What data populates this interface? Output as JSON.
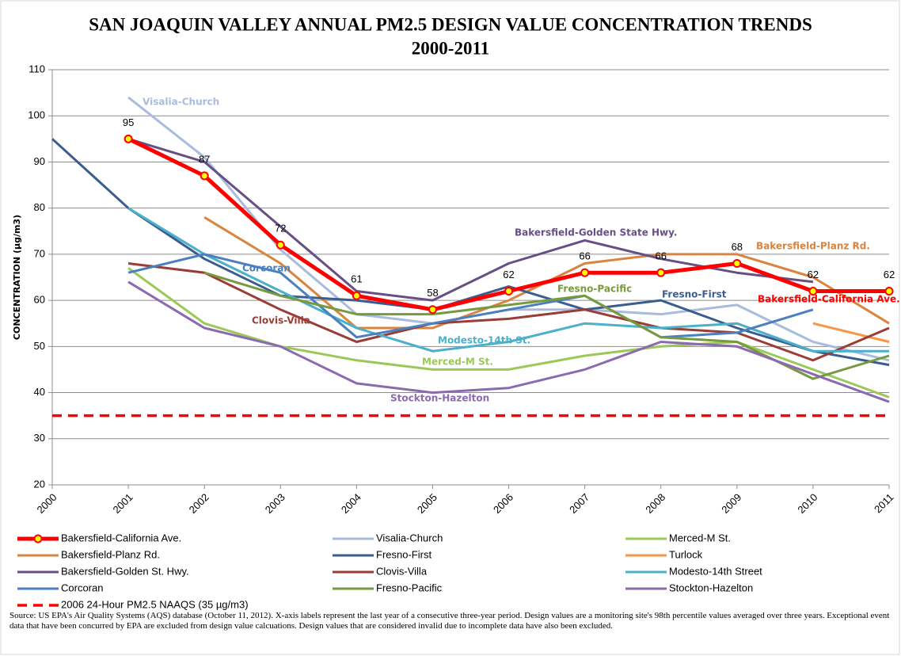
{
  "chart_data": {
    "type": "line",
    "title": "SAN JOAQUIN VALLEY ANNUAL PM2.5 DESIGN VALUE CONCENTRATION TRENDS",
    "subtitle": "2000-2011",
    "y_label": "CONCENTRATION (µg/m3)",
    "x": [
      2000,
      2001,
      2002,
      2003,
      2004,
      2005,
      2006,
      2007,
      2008,
      2009,
      2010,
      2011
    ],
    "xlim": [
      2000,
      2011
    ],
    "xticks": [
      2000,
      2001,
      2002,
      2003,
      2004,
      2005,
      2006,
      2007,
      2008,
      2009,
      2010,
      2011
    ],
    "ylim": [
      20,
      110
    ],
    "yticks": [
      20,
      30,
      40,
      50,
      60,
      70,
      80,
      90,
      100,
      110
    ],
    "grid": true,
    "series": [
      {
        "name": "Bakersfield-California Ave.",
        "color": "#ff0000",
        "marker_color": "#ffff00",
        "show_values": true,
        "values": [
          null,
          95,
          87,
          72,
          61,
          58,
          62,
          66,
          66,
          68,
          62,
          62
        ]
      },
      {
        "name": "Visalia-Church",
        "color": "#a9bcdc",
        "values": [
          null,
          104,
          91,
          71,
          57,
          55,
          58,
          58,
          57,
          59,
          51,
          47
        ]
      },
      {
        "name": "Merced-M St.",
        "color": "#9bc857",
        "values": [
          null,
          67,
          55,
          50,
          47,
          45,
          45,
          48,
          50,
          51,
          45,
          39
        ]
      },
      {
        "name": "Bakersfield-Planz Rd.",
        "color": "#d9843f",
        "values": [
          null,
          null,
          78,
          68,
          54,
          54,
          60,
          68,
          70,
          70,
          65,
          55
        ]
      },
      {
        "name": "Fresno-First",
        "color": "#3a5d8f",
        "values": [
          95,
          80,
          69,
          61,
          60,
          58,
          63,
          58,
          60,
          54,
          49,
          46
        ]
      },
      {
        "name": "Turlock",
        "color": "#f79646",
        "values": [
          null,
          null,
          null,
          null,
          null,
          null,
          null,
          null,
          null,
          null,
          55,
          51
        ]
      },
      {
        "name": "Bakersfield-Golden St. Hwy.",
        "color": "#674f86",
        "values": [
          null,
          95,
          90,
          76,
          62,
          60,
          68,
          73,
          69,
          66,
          64,
          null
        ]
      },
      {
        "name": "Clovis-Villa",
        "color": "#9b3d36",
        "values": [
          null,
          68,
          66,
          58,
          51,
          55,
          56,
          58,
          54,
          53,
          47,
          54
        ]
      },
      {
        "name": "Modesto-14th Street",
        "color": "#4bb0c9",
        "values": [
          null,
          80,
          70,
          62,
          54,
          49,
          51,
          55,
          54,
          55,
          49,
          49
        ]
      },
      {
        "name": "Corcoran",
        "color": "#4a7fc0",
        "values": [
          null,
          66,
          70,
          66,
          52,
          55,
          58,
          61,
          52,
          53,
          58,
          null
        ]
      },
      {
        "name": "Fresno-Pacific",
        "color": "#779a3f",
        "values": [
          null,
          null,
          66,
          61,
          57,
          57,
          59,
          61,
          52,
          51,
          43,
          48
        ]
      },
      {
        "name": "Stockton-Hazelton",
        "color": "#8a6ab0",
        "values": [
          null,
          64,
          54,
          50,
          42,
          40,
          41,
          45,
          51,
          50,
          44,
          38
        ]
      }
    ],
    "reference_lines": [
      {
        "name": "2006 24-Hour PM2.5 NAAQS (35 µg/m3)",
        "value": 35,
        "color": "#ff0000",
        "dashed": true
      }
    ],
    "annotations": [
      "Visalia-Church",
      "Corcoran",
      "Clovis-Villa",
      "Bakersfield-Golden State Hwy.",
      "Fresno-Pacific",
      "Bakersfield-Planz Rd.",
      "Fresno-First",
      "Bakersfield-California Ave.",
      "Modesto-14th St.",
      "Merced-M St.",
      "Stockton-Hazelton"
    ],
    "note": "Source: US EPA's Air Quality Systems (AQS) database (October 11, 2012). X-axis labels represent the last year of a consecutive three-year period. Design values are a monitoring site's 98th percentile values averaged over three years. Exceptional event data that have been concurred by EPA are excluded from design value calcuations. Design values that are considered invalid due to incomplete data have also been excluded."
  }
}
